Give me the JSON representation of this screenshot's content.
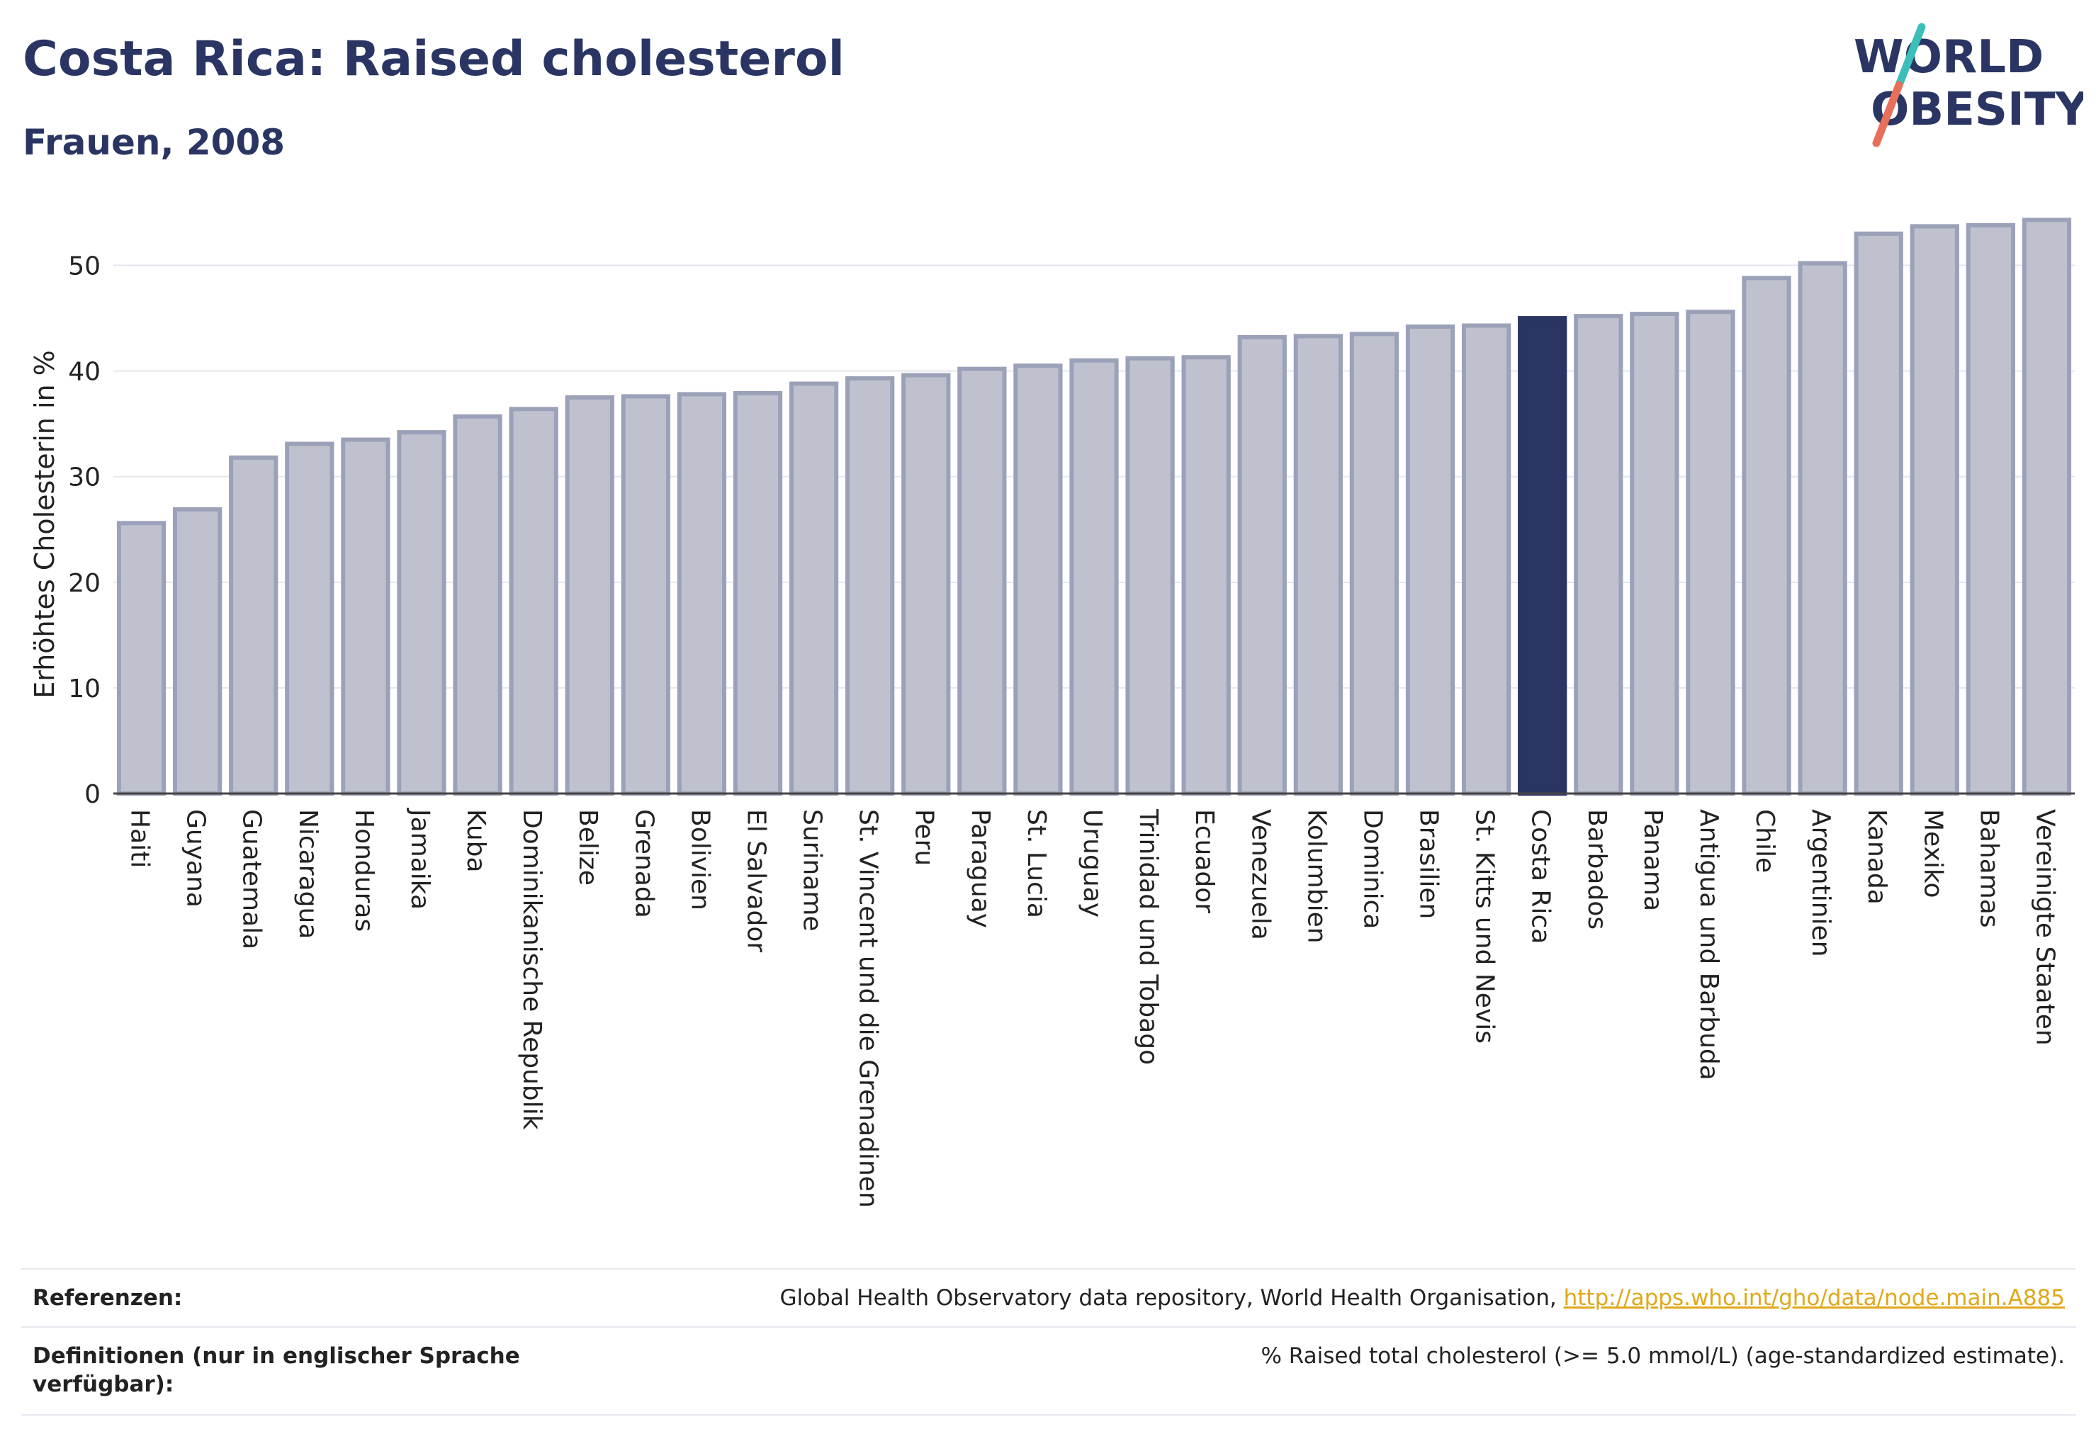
{
  "header": {
    "title": "Costa Rica: Raised cholesterol",
    "subtitle": "Frauen, 2008"
  },
  "logo": {
    "line1": "WORLD",
    "line2": "OBESITY",
    "text_color": "#2a3563",
    "slash_top_color": "#3bbfb8",
    "slash_bottom_color": "#e8705a"
  },
  "chart_data": {
    "type": "bar",
    "ylabel": "Erhöhtes Cholesterin in %",
    "ylim": [
      0,
      55
    ],
    "yticks": [
      0,
      10,
      20,
      30,
      40,
      50
    ],
    "grid": true,
    "highlight": "Costa Rica",
    "colors": {
      "bar_fill": "#bfc2ce",
      "bar_stroke": "#9ba1b8",
      "highlight_fill": "#2a3563"
    },
    "categories": [
      "Haiti",
      "Guyana",
      "Guatemala",
      "Nicaragua",
      "Honduras",
      "Jamaika",
      "Kuba",
      "Dominikanische Republik",
      "Belize",
      "Grenada",
      "Bolivien",
      "El Salvador",
      "Suriname",
      "St. Vincent und die Grenadinen",
      "Peru",
      "Paraguay",
      "St. Lucia",
      "Uruguay",
      "Trinidad und Tobago",
      "Ecuador",
      "Venezuela",
      "Kolumbien",
      "Dominica",
      "Brasilien",
      "St. Kitts und Nevis",
      "Costa Rica",
      "Barbados",
      "Panama",
      "Antigua und Barbuda",
      "Chile",
      "Argentinien",
      "Kanada",
      "Mexiko",
      "Bahamas",
      "Vereinigte Staaten"
    ],
    "values": [
      25.6,
      26.9,
      31.8,
      33.1,
      33.5,
      34.2,
      35.7,
      36.4,
      37.5,
      37.6,
      37.8,
      37.9,
      38.8,
      39.3,
      39.6,
      40.2,
      40.5,
      41.0,
      41.2,
      41.3,
      43.2,
      43.3,
      43.5,
      44.2,
      44.3,
      45.0,
      45.2,
      45.4,
      45.6,
      48.8,
      50.2,
      53.0,
      53.7,
      53.8,
      54.3
    ]
  },
  "footer": {
    "references_label": "Referenzen:",
    "references_text": "Global Health Observatory data repository, World Health Organisation, ",
    "references_link": "http://apps.who.int/gho/data/node.main.A885",
    "definitions_label_line1": "Definitionen (nur in englischer Sprache",
    "definitions_label_line2": "verfügbar):",
    "definitions_text": "% Raised total cholesterol (>= 5.0 mmol/L) (age-standardized estimate)."
  }
}
